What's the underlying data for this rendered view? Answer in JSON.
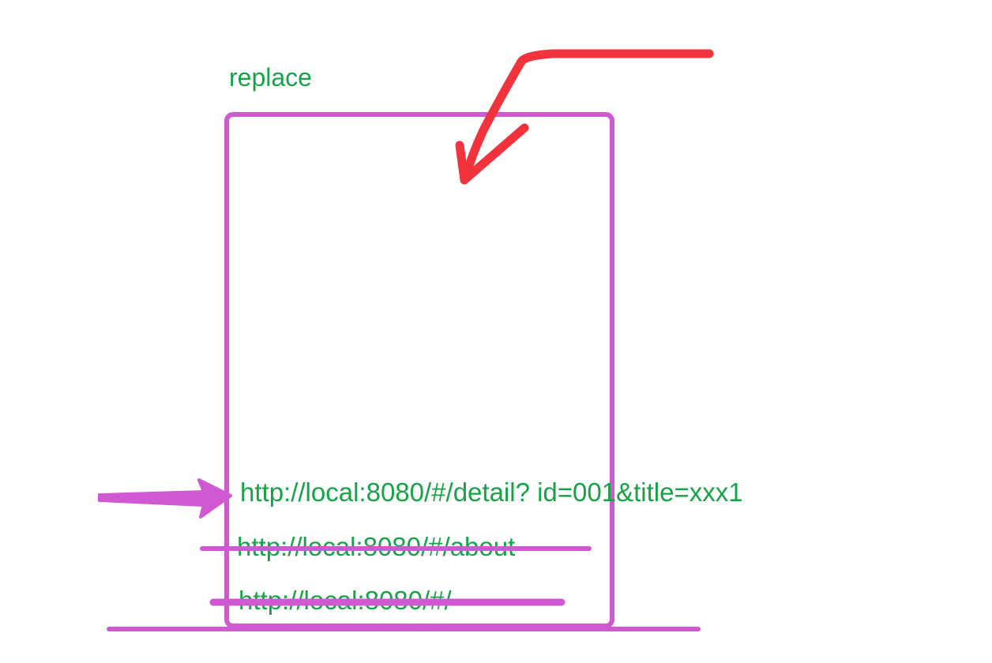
{
  "title": "replace",
  "history_stack": [
    {
      "url": "http://local:8080/#/detail?  id=001&title=xxx1",
      "state": "current"
    },
    {
      "url": "http://local:8080/#/about",
      "state": "removed"
    },
    {
      "url": "http://local:8080/#/",
      "state": "removed"
    }
  ],
  "colors": {
    "text": "#17a246",
    "stack_border": "#d058d0",
    "pointer_arrow": "#d058d0",
    "replace_arrow": "#f2323c"
  },
  "icons": {
    "replace_arrow": "curved-arrow-down-left-icon",
    "pointer_arrow": "arrow-right-icon"
  }
}
